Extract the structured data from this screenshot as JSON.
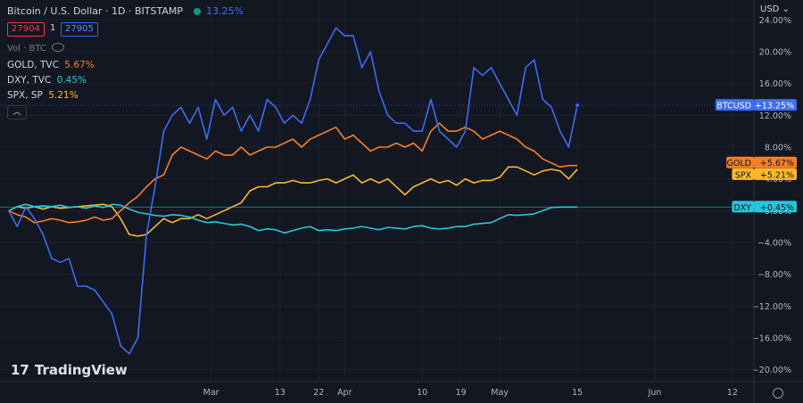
{
  "header": {
    "title": "Bitcoin / U.S. Dollar · 1D · BITSTAMP",
    "change": "13.25%",
    "bid": "27904",
    "qty": "1",
    "ask": "27905",
    "volume_label": "Vol · BTC",
    "currency": "USD"
  },
  "legend": [
    {
      "name": "GOLD, TVC",
      "value": "5.67%",
      "color": "#f57f28"
    },
    {
      "name": "DXY, TVC",
      "value": "0.45%",
      "color": "#26c6da"
    },
    {
      "name": "SPX, SP",
      "value": "5.21%",
      "color": "#f9b82a"
    }
  ],
  "brand": "TradingView",
  "icons": {
    "visibility": "eye-icon",
    "collapse": "chevron-up-icon",
    "settings": "gear-icon"
  },
  "chart_data": {
    "type": "line",
    "yaxis": {
      "ticks": [
        24,
        20,
        16,
        12,
        8,
        4,
        0,
        -4,
        -8,
        -12,
        -16,
        -20
      ],
      "tick_labels": [
        "24.00%",
        "20.00%",
        "16.00%",
        "12.00%",
        "8.00%",
        "4.00%",
        "0.00%",
        "−4.00%",
        "−8.00%",
        "−12.00%",
        "−16.00%",
        "−20.00%"
      ],
      "range": [
        -21.5,
        26.5
      ]
    },
    "xaxis": {
      "tick_labels": [
        "Mar",
        "13",
        "22",
        "Apr",
        "10",
        "19",
        "May",
        "15",
        "Jun",
        "12"
      ],
      "tick_positions": [
        47,
        63,
        72,
        78,
        96,
        105,
        114,
        132,
        150,
        168
      ],
      "range": [
        -2,
        173
      ]
    },
    "series": [
      {
        "name": "BTCUSD",
        "label": "+13.25%",
        "color": "#3d6cf5",
        "x": [
          0,
          2,
          4,
          6,
          8,
          10,
          12,
          14,
          16,
          18,
          20,
          22,
          24,
          26,
          28,
          30,
          32,
          34,
          36,
          38,
          40,
          42,
          44,
          46,
          48,
          50,
          52,
          54,
          56,
          58,
          60,
          62,
          64,
          66,
          68,
          70,
          72,
          74,
          76,
          78,
          80,
          82,
          84,
          86,
          88,
          90,
          92,
          94,
          96,
          98,
          100,
          102,
          104,
          106,
          108,
          110,
          112,
          114,
          116,
          118,
          120,
          122,
          124,
          126,
          128,
          130,
          132
        ],
        "y": [
          0,
          -2,
          0.5,
          -1,
          -3,
          -6,
          -6.5,
          -6,
          -9.5,
          -9.5,
          -10,
          -11.5,
          -13,
          -17,
          -18,
          -16,
          -3,
          3,
          10,
          12,
          13,
          11,
          13,
          9,
          14,
          12,
          13,
          10,
          12,
          10,
          14,
          13,
          11,
          12,
          11,
          14,
          19,
          21,
          23,
          22,
          22,
          18,
          20,
          15,
          12,
          11,
          11,
          10,
          10,
          14,
          10,
          9,
          8,
          10,
          18,
          17,
          18,
          16,
          14,
          12,
          18,
          19,
          14,
          13,
          10,
          8,
          13.25
        ]
      },
      {
        "name": "GOLD",
        "label": "+5.67%",
        "color": "#f57f28",
        "x": [
          0,
          2,
          4,
          6,
          8,
          10,
          12,
          14,
          16,
          18,
          20,
          22,
          24,
          26,
          28,
          30,
          32,
          34,
          36,
          38,
          40,
          42,
          44,
          46,
          48,
          50,
          52,
          54,
          56,
          58,
          60,
          62,
          64,
          66,
          68,
          70,
          72,
          74,
          76,
          78,
          80,
          82,
          84,
          86,
          88,
          90,
          92,
          94,
          96,
          98,
          100,
          102,
          104,
          106,
          108,
          110,
          112,
          114,
          116,
          118,
          120,
          122,
          124,
          126,
          128,
          130,
          132
        ],
        "y": [
          0,
          -0.5,
          -0.8,
          -1.5,
          -1.3,
          -1,
          -1.2,
          -1.5,
          -1.4,
          -1.2,
          -0.8,
          -1.2,
          -1,
          0,
          1,
          1.8,
          3,
          4,
          4.5,
          7,
          8,
          7.5,
          7,
          6.5,
          7.5,
          7,
          7,
          8,
          7,
          7.5,
          8,
          8,
          8.5,
          9,
          8,
          9,
          9.5,
          10,
          10.5,
          9,
          9.5,
          8.5,
          7.5,
          8,
          8,
          8.5,
          8,
          8.5,
          7.5,
          10,
          11,
          10,
          10,
          10.5,
          10,
          9,
          9.5,
          10,
          9.5,
          9,
          8,
          7.5,
          6.5,
          6,
          5.5,
          5.67,
          5.67
        ]
      },
      {
        "name": "SPX",
        "label": "+5.21%",
        "color": "#f9b82a",
        "x": [
          0,
          2,
          4,
          6,
          8,
          10,
          12,
          14,
          16,
          18,
          20,
          22,
          24,
          26,
          28,
          30,
          32,
          34,
          36,
          38,
          40,
          42,
          44,
          46,
          48,
          50,
          52,
          54,
          56,
          58,
          60,
          62,
          64,
          66,
          68,
          70,
          72,
          74,
          76,
          78,
          80,
          82,
          84,
          86,
          88,
          90,
          92,
          94,
          96,
          98,
          100,
          102,
          104,
          106,
          108,
          110,
          112,
          114,
          116,
          118,
          120,
          122,
          124,
          126,
          128,
          130,
          132
        ],
        "y": [
          0,
          0.5,
          0.3,
          0.5,
          0.2,
          0.5,
          0.3,
          0.4,
          0.5,
          0.6,
          0.7,
          0.8,
          0.5,
          -1,
          -3,
          -3.2,
          -3,
          -2,
          -1,
          -1.5,
          -1,
          -1,
          -0.5,
          -1,
          -0.5,
          0,
          0.5,
          1,
          2.5,
          3,
          3,
          3.5,
          3.5,
          3.8,
          3.5,
          3.5,
          3.8,
          4,
          3.5,
          4,
          4.5,
          3.5,
          4,
          3.5,
          4,
          3,
          2,
          3,
          3.5,
          4,
          3.5,
          3.8,
          3.2,
          4,
          3.5,
          3.8,
          3.8,
          4.2,
          5.5,
          5.5,
          5,
          4.5,
          5,
          5.2,
          5,
          4,
          5.21
        ]
      },
      {
        "name": "DXY",
        "label": "+0.45%",
        "color": "#26c6da",
        "x": [
          0,
          2,
          4,
          6,
          8,
          10,
          12,
          14,
          16,
          18,
          20,
          22,
          24,
          26,
          28,
          30,
          32,
          34,
          36,
          38,
          40,
          42,
          44,
          46,
          48,
          50,
          52,
          54,
          56,
          58,
          60,
          62,
          64,
          66,
          68,
          70,
          72,
          74,
          76,
          78,
          80,
          82,
          84,
          86,
          88,
          90,
          92,
          94,
          96,
          98,
          100,
          102,
          104,
          106,
          108,
          110,
          112,
          114,
          116,
          118,
          120,
          122,
          124,
          126,
          128,
          130,
          132
        ],
        "y": [
          0,
          0.5,
          0.8,
          0.5,
          0.6,
          0.5,
          0.7,
          0.4,
          0.5,
          0.3,
          0.6,
          0.4,
          0.8,
          0.7,
          0.2,
          -0.2,
          -0.4,
          -0.6,
          -0.7,
          -0.5,
          -0.6,
          -0.8,
          -1.2,
          -1.5,
          -1.4,
          -1.6,
          -1.8,
          -1.7,
          -2,
          -2.5,
          -2.3,
          -2.4,
          -2.8,
          -2.5,
          -2.2,
          -2,
          -2.5,
          -2.4,
          -2.5,
          -2.3,
          -2.2,
          -2,
          -2.2,
          -2.4,
          -2.1,
          -2.2,
          -2.3,
          -2,
          -1.9,
          -2.2,
          -2.3,
          -2.2,
          -2,
          -2,
          -1.7,
          -1.6,
          -1.5,
          -1,
          -0.5,
          -0.6,
          -0.5,
          -0.4,
          0,
          0.4,
          0.45,
          0.45,
          0.45
        ]
      }
    ],
    "grid": true,
    "legend": "top-left",
    "scale_labels": "right"
  }
}
